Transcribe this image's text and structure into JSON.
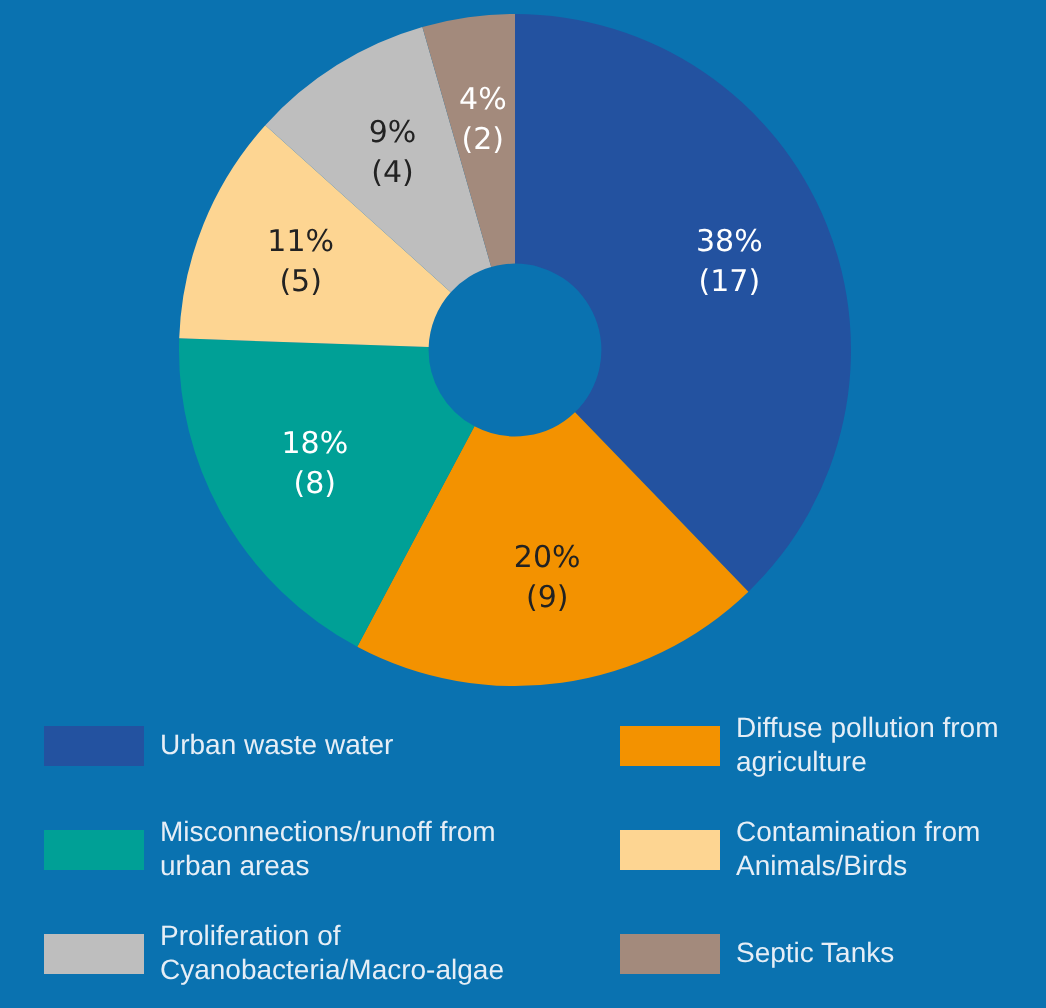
{
  "chart_data": {
    "type": "donut",
    "categories": [
      "Urban waste water",
      "Diffuse pollution from agriculture",
      "Misconnections/runoff from urban areas",
      "Contamination from Animals/Birds",
      "Proliferation of Cyanobacteria/Macro-algae",
      "Septic Tanks"
    ],
    "values": [
      17,
      9,
      8,
      5,
      4,
      2
    ],
    "colors": [
      "#2352a0",
      "#f39200",
      "#00a096",
      "#fdd592",
      "#bebebe",
      "#a38a7c"
    ],
    "value_labels": [
      "38%\n(17)",
      "20%\n(9)",
      "18%\n(8)",
      "11%\n(5)",
      "9%\n(4)",
      "4%\n(2)"
    ],
    "legend": "bottom"
  }
}
